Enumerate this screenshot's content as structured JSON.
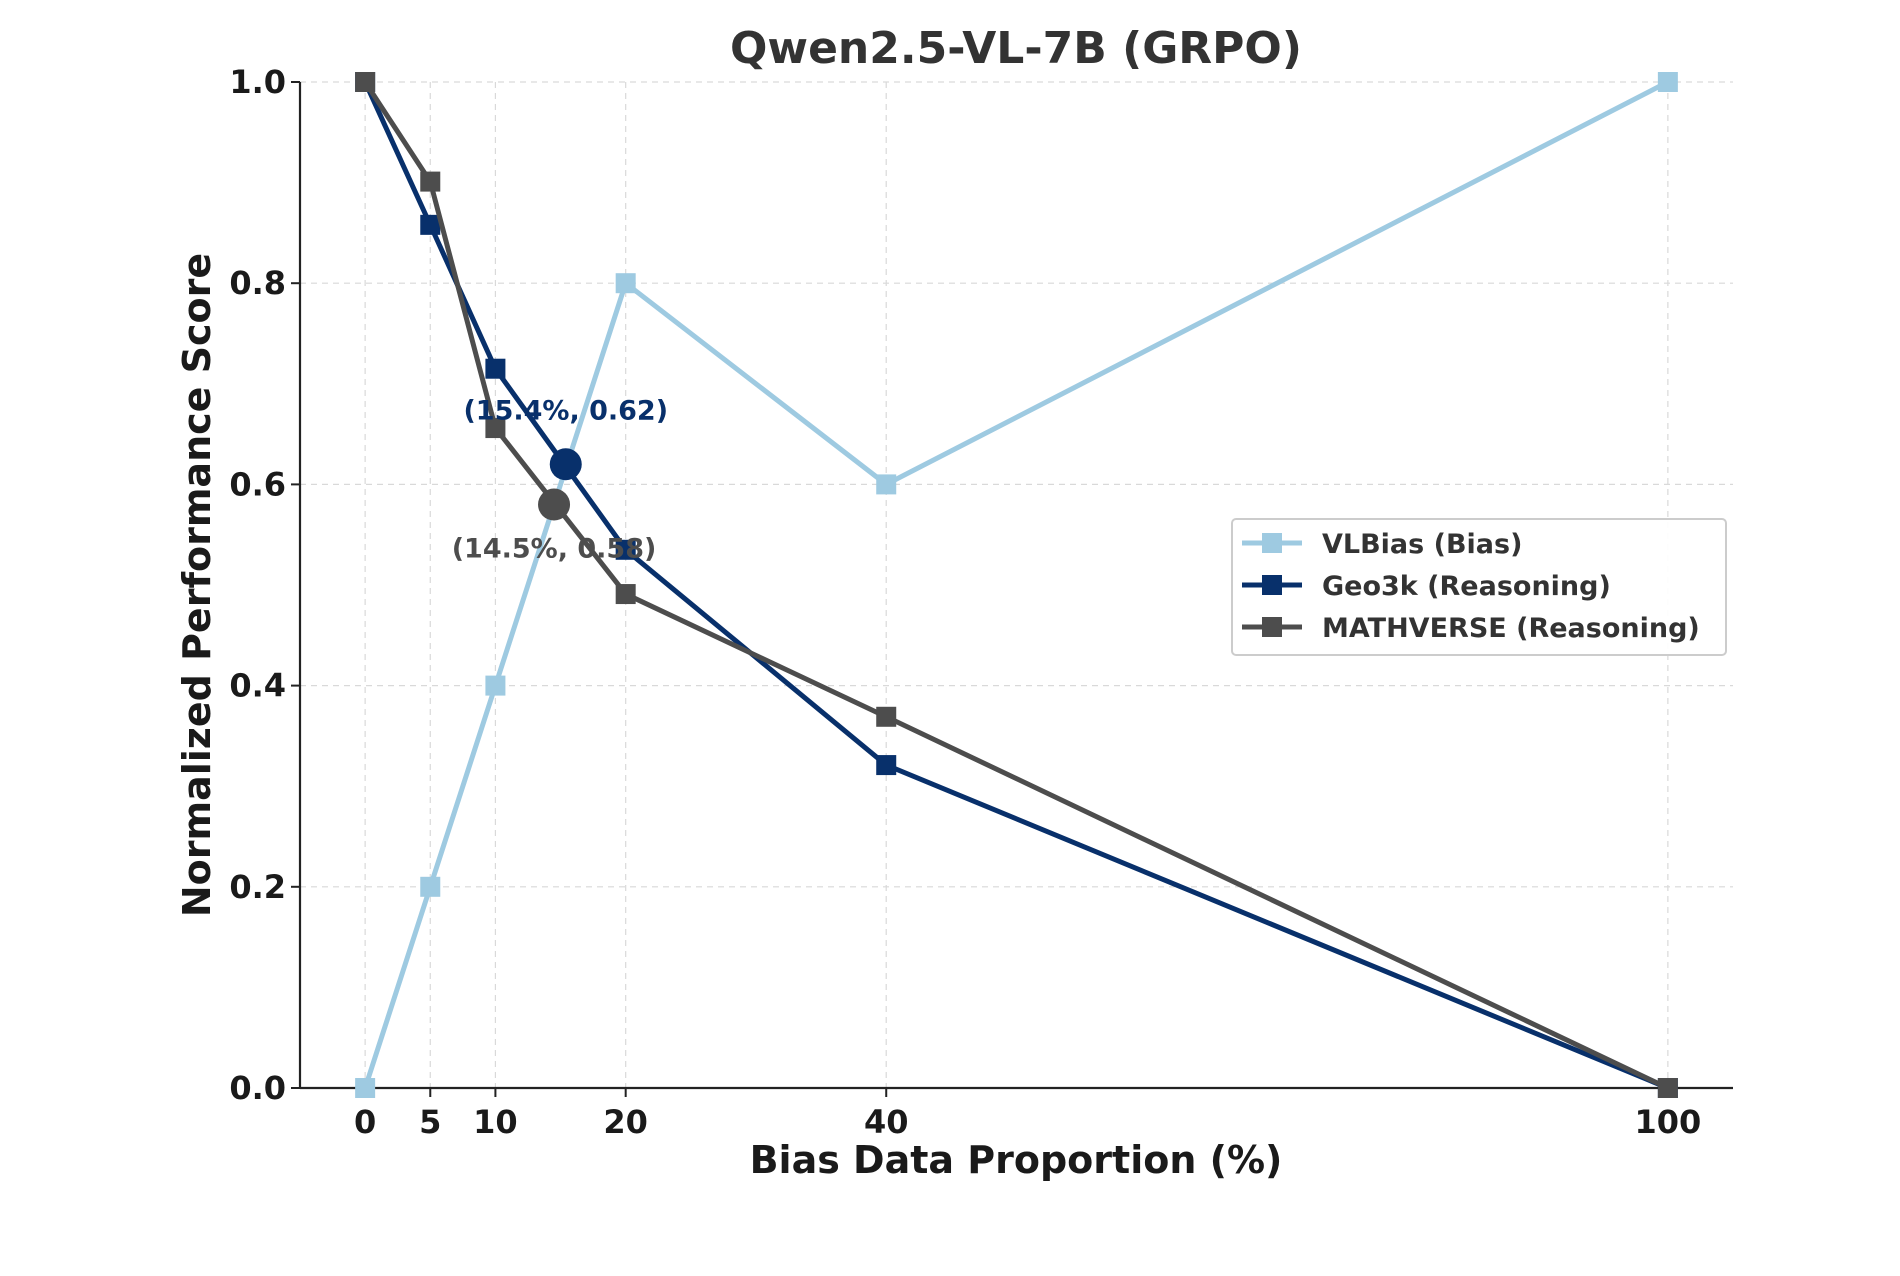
{
  "chart_data": {
    "type": "line",
    "title": "Qwen2.5-VL-7B (GRPO)",
    "xlabel": "Bias Data Proportion (%)",
    "ylabel": "Normalized Performance Score",
    "x": [
      0,
      5,
      10,
      20,
      40,
      100
    ],
    "xticks": [
      "0",
      "5",
      "10",
      "20",
      "40",
      "100"
    ],
    "yticks": [
      "0.0",
      "0.2",
      "0.4",
      "0.6",
      "0.8",
      "1.0"
    ],
    "xlim": [
      -5,
      105
    ],
    "ylim": [
      0,
      1
    ],
    "grid": true,
    "legend_position": "center-right",
    "series": [
      {
        "name": "VLBias (Bias)",
        "color": "#9ecae1",
        "marker": "square",
        "values": [
          0.0,
          0.2,
          0.4,
          0.8,
          0.6,
          1.0
        ]
      },
      {
        "name": "Geo3k (Reasoning)",
        "color": "#08306b",
        "marker": "square",
        "values": [
          1.0,
          0.858,
          0.715,
          0.535,
          0.321,
          0.0
        ]
      },
      {
        "name": "MATHVERSE (Reasoning)",
        "color": "#4d4d4d",
        "marker": "square",
        "values": [
          1.0,
          0.901,
          0.656,
          0.491,
          0.369,
          0.0
        ]
      }
    ],
    "annotations": [
      {
        "text": "(15.4%, 0.62)",
        "x": 15.4,
        "y": 0.62,
        "color": "#08306b"
      },
      {
        "text": "(14.5%, 0.58)",
        "x": 14.5,
        "y": 0.58,
        "color": "#4d4d4d"
      }
    ]
  }
}
